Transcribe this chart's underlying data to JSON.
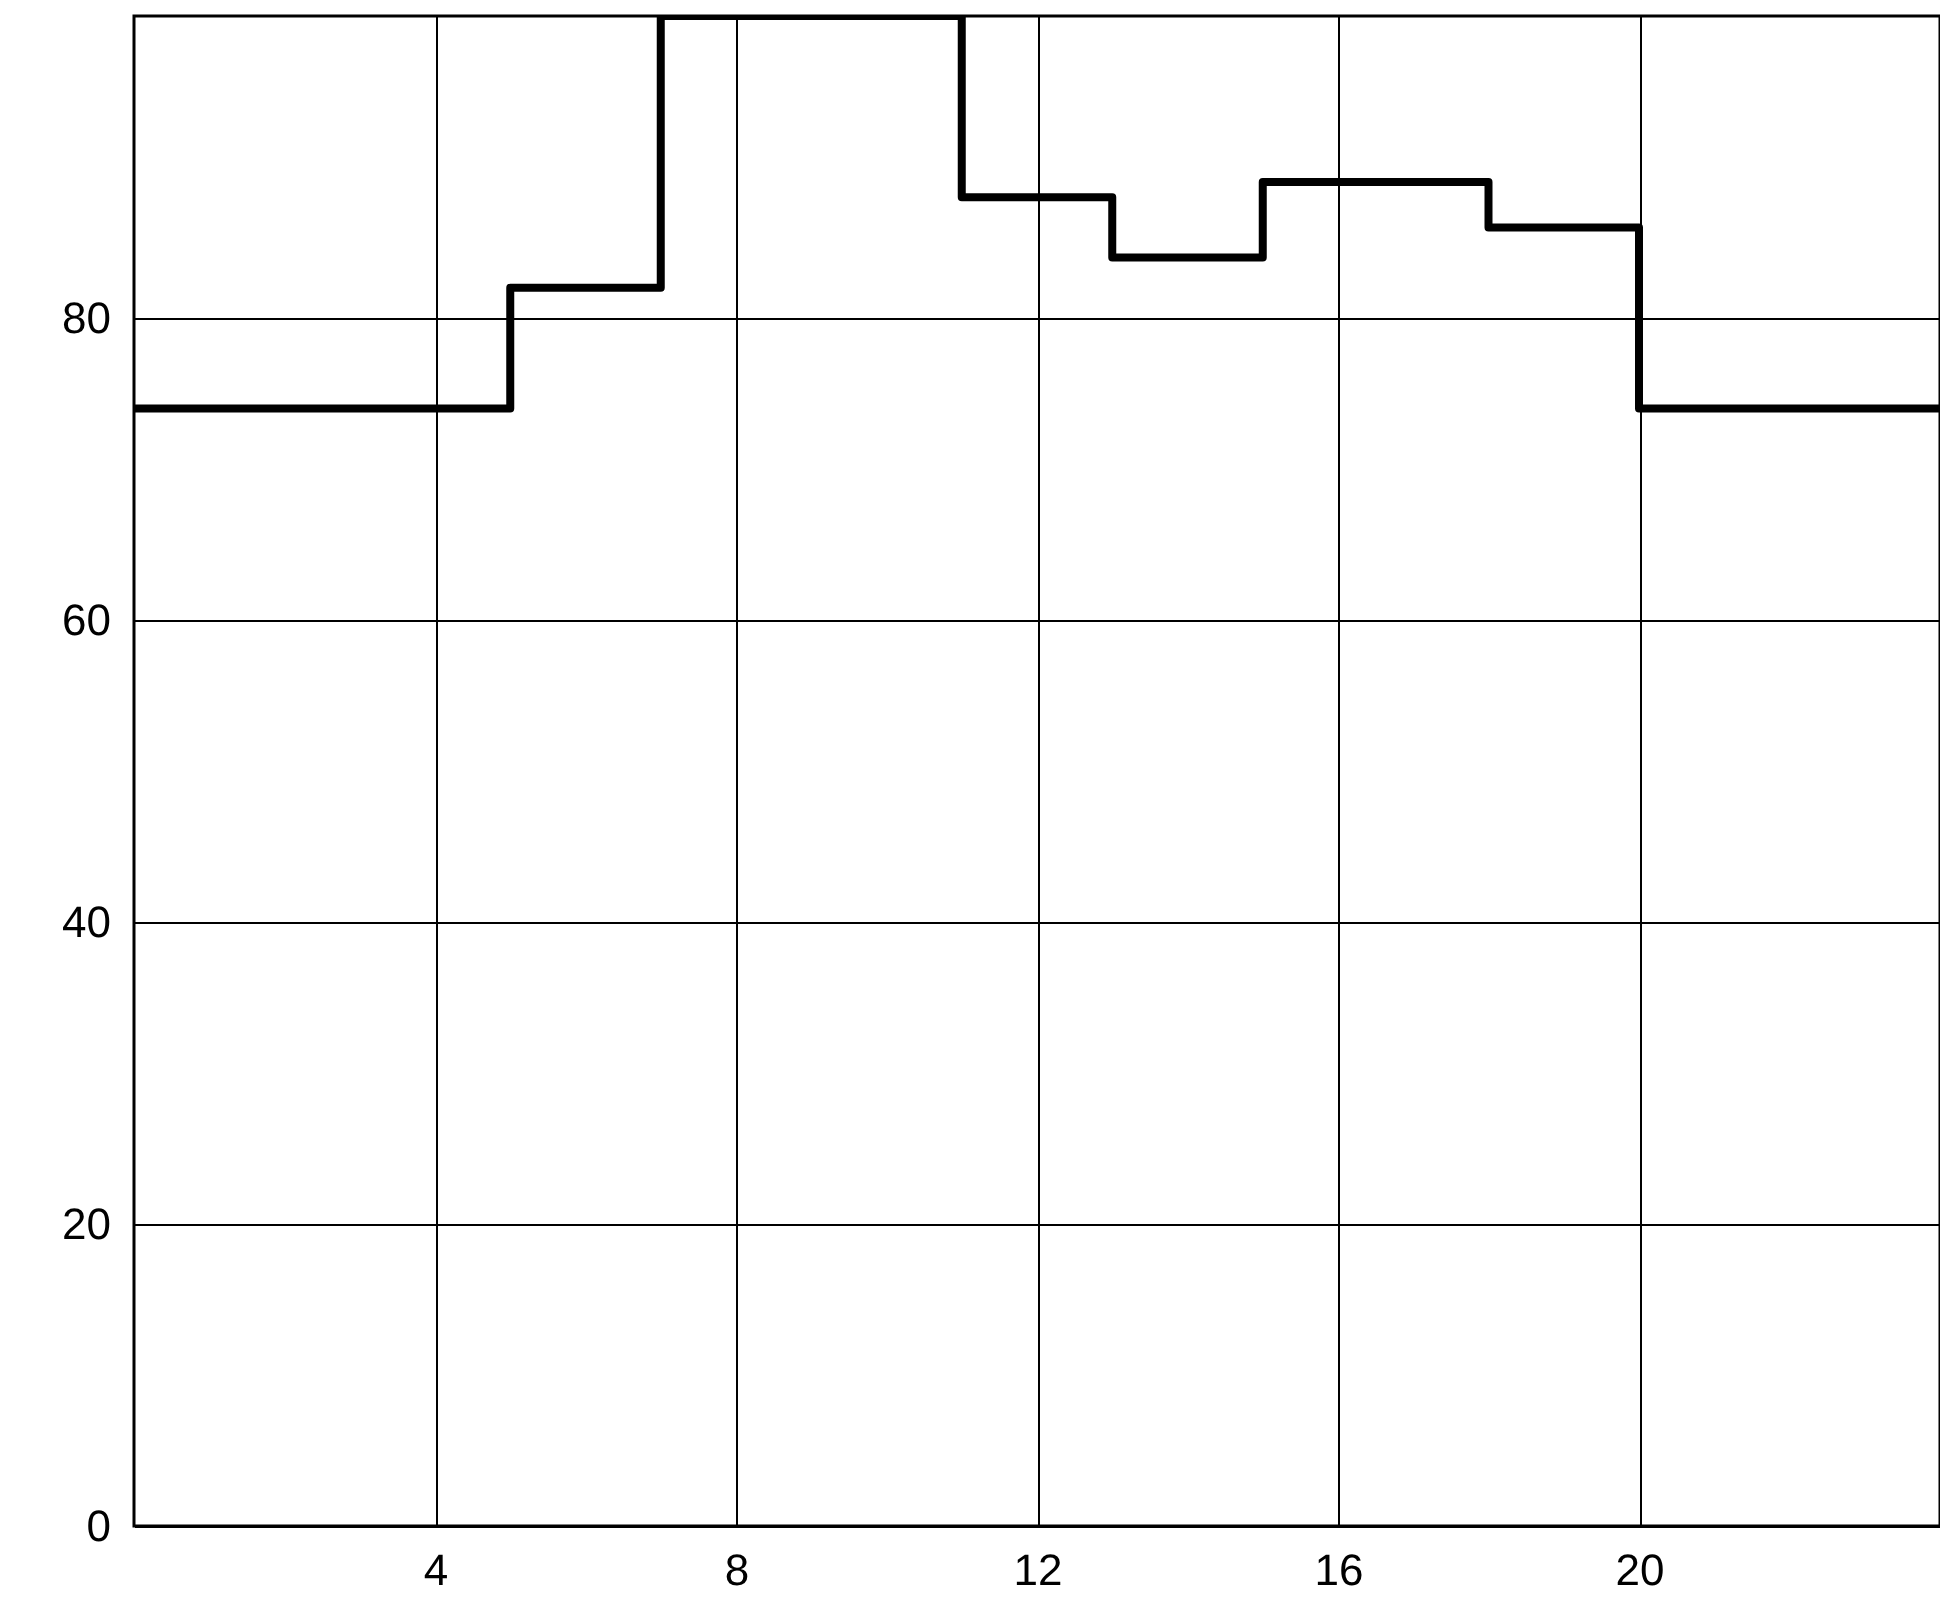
{
  "chart_data": {
    "type": "step",
    "x": [
      0,
      5,
      7,
      11,
      13,
      15,
      18,
      20,
      24
    ],
    "series": [
      {
        "color": "#000000",
        "values": [
          74,
          82,
          100,
          88,
          84,
          89,
          86,
          74,
          74
        ]
      }
    ],
    "xlim": [
      0,
      24
    ],
    "xticks": [
      4,
      8,
      12,
      16,
      20
    ],
    "ylim": [
      0,
      100
    ],
    "yticks": [
      0,
      20,
      40,
      60,
      80
    ],
    "grid": true,
    "line_style": "solid",
    "marker": "none"
  }
}
